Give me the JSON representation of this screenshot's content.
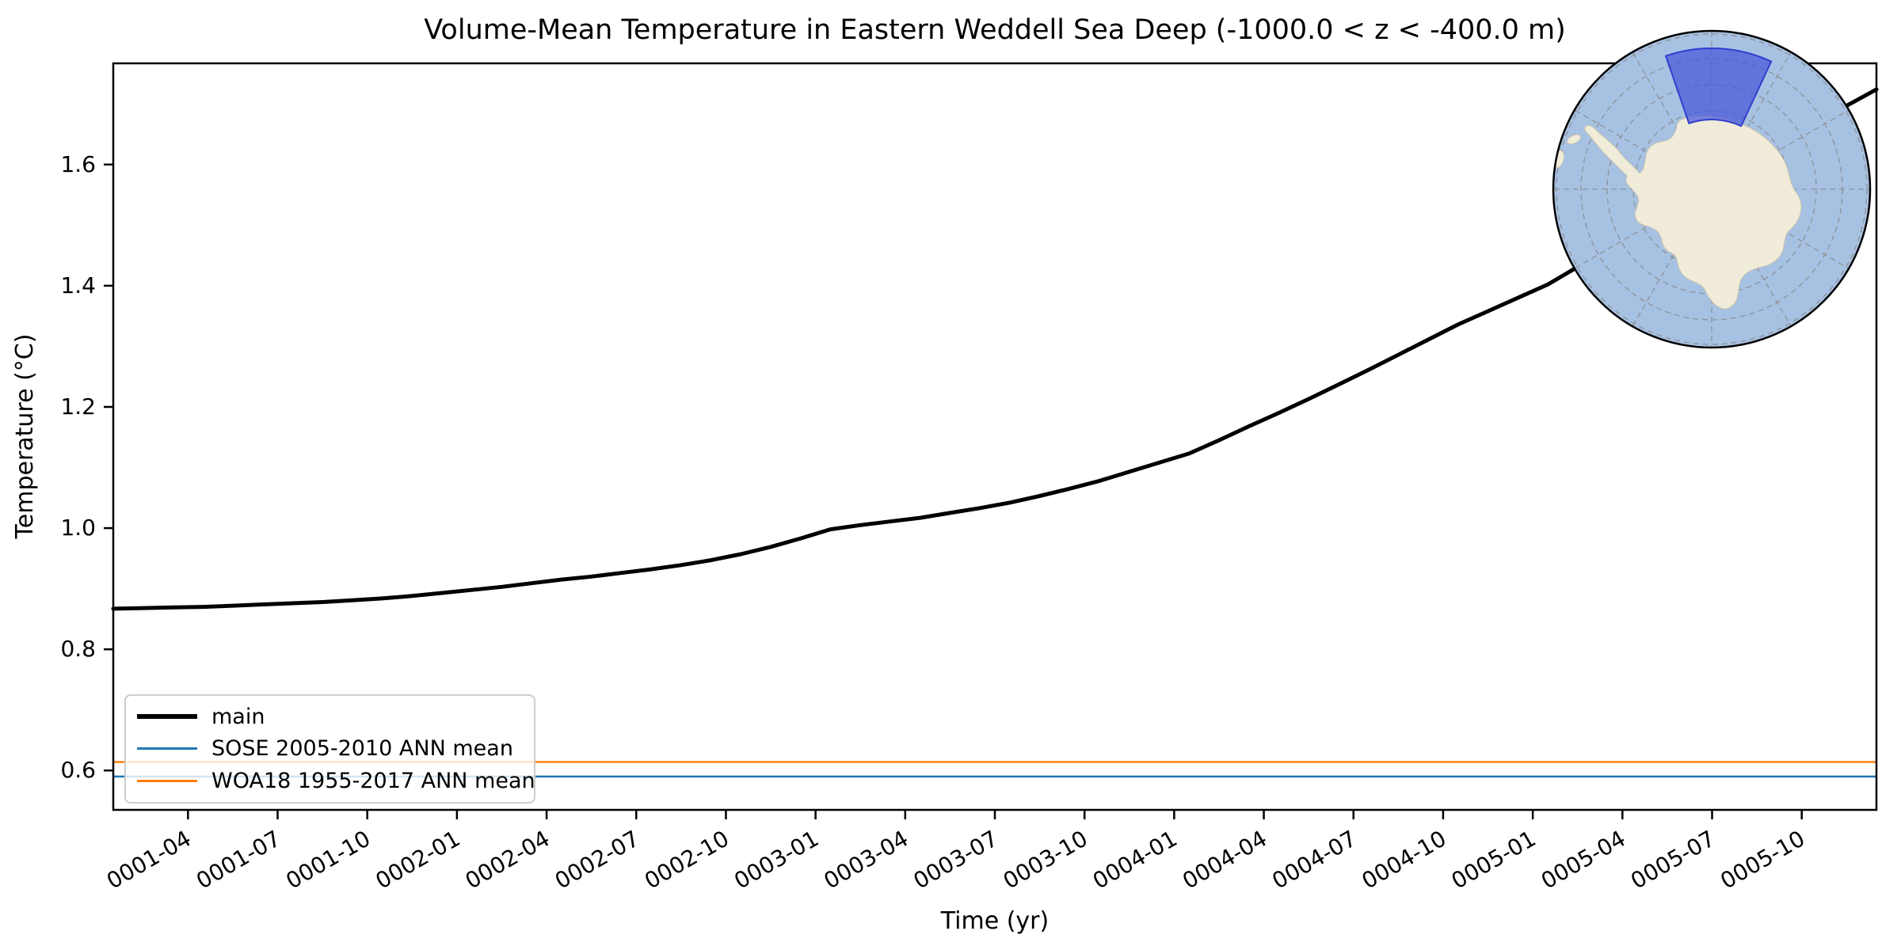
{
  "chart_data": {
    "type": "line",
    "title": "Volume-Mean Temperature in Eastern Weddell Sea Deep (-1000.0 < z < -400.0 m)",
    "xlabel": "Time (yr)",
    "ylabel": "Temperature (°C)",
    "grid": false,
    "legend_position": "lower left",
    "xlim_months": [
      0.5,
      59.5
    ],
    "ylim": [
      0.535,
      1.767
    ],
    "y_ticks": [
      0.6,
      0.8,
      1.0,
      1.2,
      1.4,
      1.6
    ],
    "x_ticks": [
      {
        "month": 3,
        "label": "0001-04"
      },
      {
        "month": 6,
        "label": "0001-07"
      },
      {
        "month": 9,
        "label": "0001-10"
      },
      {
        "month": 12,
        "label": "0002-01"
      },
      {
        "month": 15,
        "label": "0002-04"
      },
      {
        "month": 18,
        "label": "0002-07"
      },
      {
        "month": 21,
        "label": "0002-10"
      },
      {
        "month": 24,
        "label": "0003-01"
      },
      {
        "month": 27,
        "label": "0003-04"
      },
      {
        "month": 30,
        "label": "0003-07"
      },
      {
        "month": 33,
        "label": "0003-10"
      },
      {
        "month": 36,
        "label": "0004-01"
      },
      {
        "month": 39,
        "label": "0004-04"
      },
      {
        "month": 42,
        "label": "0004-07"
      },
      {
        "month": 45,
        "label": "0004-10"
      },
      {
        "month": 48,
        "label": "0005-01"
      },
      {
        "month": 51,
        "label": "0005-04"
      },
      {
        "month": 54,
        "label": "0005-07"
      },
      {
        "month": 57,
        "label": "0005-10"
      }
    ],
    "series": [
      {
        "name": "main",
        "type": "line",
        "color": "#000000",
        "line_width": 5,
        "x_months": [
          0.5,
          1.5,
          2.5,
          3.5,
          4.5,
          5.5,
          6.5,
          7.5,
          8.5,
          9.5,
          10.5,
          11.5,
          12.5,
          13.5,
          14.5,
          15.5,
          16.5,
          17.5,
          18.5,
          19.5,
          20.5,
          21.5,
          22.5,
          23.5,
          24.5,
          25.5,
          26.5,
          27.5,
          28.5,
          29.5,
          30.5,
          31.5,
          32.5,
          33.5,
          34.5,
          35.5,
          36.5,
          37.5,
          38.5,
          39.5,
          40.5,
          41.5,
          42.5,
          43.5,
          44.5,
          45.5,
          46.5,
          47.5,
          48.5,
          49.5,
          50.5,
          51.5,
          52.5,
          53.5,
          54.5,
          55.5,
          56.5,
          57.5,
          58.5,
          59.5
        ],
        "values": [
          0.867,
          0.868,
          0.869,
          0.87,
          0.872,
          0.874,
          0.876,
          0.878,
          0.881,
          0.884,
          0.888,
          0.893,
          0.898,
          0.903,
          0.909,
          0.915,
          0.92,
          0.926,
          0.932,
          0.939,
          0.947,
          0.957,
          0.969,
          0.983,
          0.998,
          1.005,
          1.011,
          1.017,
          1.025,
          1.033,
          1.042,
          1.053,
          1.065,
          1.078,
          1.093,
          1.108,
          1.123,
          1.145,
          1.168,
          1.19,
          1.213,
          1.237,
          1.261,
          1.286,
          1.311,
          1.336,
          1.358,
          1.38,
          1.402,
          1.431,
          1.46,
          1.49,
          1.52,
          1.55,
          1.58,
          1.61,
          1.64,
          1.67,
          1.697,
          1.724
        ]
      },
      {
        "name": "SOSE 2005-2010 ANN mean",
        "type": "hline",
        "color": "#1f77b4",
        "line_width": 2.5,
        "value": 0.59
      },
      {
        "name": "WOA18 1955-2017 ANN mean",
        "type": "hline",
        "color": "#ff7f0e",
        "line_width": 2.5,
        "value": 0.614
      }
    ],
    "legend_entries": [
      {
        "label": "main",
        "color": "#000000",
        "sample_width": 6
      },
      {
        "label": "SOSE 2005-2010 ANN mean",
        "color": "#1f77b4",
        "sample_width": 3
      },
      {
        "label": "WOA18 1955-2017 ANN mean",
        "color": "#ff7f0e",
        "sample_width": 3
      }
    ]
  },
  "inset_map": {
    "name": "antarctica-south-polar-stereographic-inset",
    "ocean_color": "#a7c1e2",
    "land_color": "#f0ecd9",
    "highlight_region_color": "#4353d9",
    "graticule_color": "#8a8a8a",
    "border_color": "#000000"
  }
}
